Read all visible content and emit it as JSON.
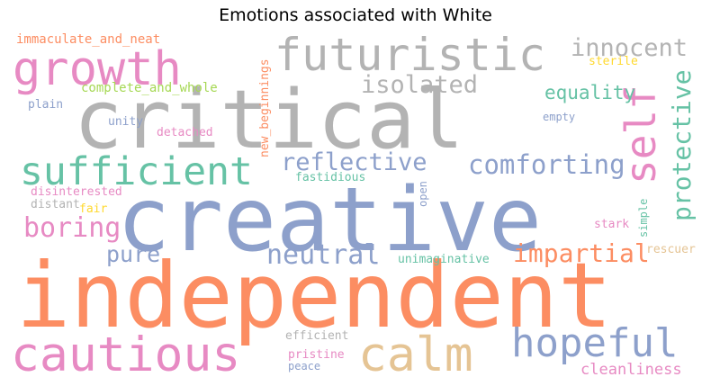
{
  "chart_data": {
    "type": "wordcloud",
    "title": "Emotions associated with White",
    "words": [
      {
        "text": "independent",
        "weight": 100,
        "color": "#fc8d62"
      },
      {
        "text": "creative",
        "weight": 80,
        "color": "#8da0cb"
      },
      {
        "text": "critical",
        "weight": 73,
        "color": "#b3b3b3"
      },
      {
        "text": "growth",
        "weight": 43,
        "color": "#e78ac3"
      },
      {
        "text": "futuristic",
        "weight": 41,
        "color": "#b3b3b3"
      },
      {
        "text": "cautious",
        "weight": 43,
        "color": "#e78ac3"
      },
      {
        "text": "calm",
        "weight": 43,
        "color": "#e5c494"
      },
      {
        "text": "self",
        "weight": 37,
        "color": "#e78ac3"
      },
      {
        "text": "sufficient",
        "weight": 35,
        "color": "#66c2a5"
      },
      {
        "text": "hopeful",
        "weight": 36,
        "color": "#8da0cb"
      },
      {
        "text": "comforting",
        "weight": 24,
        "color": "#8da0cb"
      },
      {
        "text": "protective",
        "weight": 24,
        "color": "#66c2a5"
      },
      {
        "text": "innocent",
        "weight": 22,
        "color": "#b3b3b3"
      },
      {
        "text": "reflective",
        "weight": 22,
        "color": "#8da0cb"
      },
      {
        "text": "isolated",
        "weight": 22,
        "color": "#b3b3b3"
      },
      {
        "text": "boring",
        "weight": 25,
        "color": "#e78ac3"
      },
      {
        "text": "neutral",
        "weight": 25,
        "color": "#8da0cb"
      },
      {
        "text": "impartial",
        "weight": 23,
        "color": "#fc8d62"
      },
      {
        "text": "pure",
        "weight": 21,
        "color": "#8da0cb"
      },
      {
        "text": "equality",
        "weight": 18,
        "color": "#66c2a5"
      },
      {
        "text": "cleanliness",
        "weight": 15,
        "color": "#e78ac3"
      },
      {
        "text": "immaculate_and_neat",
        "weight": 12,
        "color": "#fc8d62"
      },
      {
        "text": "complete_and_whole",
        "weight": 12,
        "color": "#a6d854"
      },
      {
        "text": "new_beginnings",
        "weight": 11,
        "color": "#fc8d62"
      },
      {
        "text": "sterile",
        "weight": 11,
        "color": "#ffd92f"
      },
      {
        "text": "plain",
        "weight": 11,
        "color": "#8da0cb"
      },
      {
        "text": "unity",
        "weight": 11,
        "color": "#8da0cb"
      },
      {
        "text": "detached",
        "weight": 11,
        "color": "#e78ac3"
      },
      {
        "text": "empty",
        "weight": 10,
        "color": "#8da0cb"
      },
      {
        "text": "fastidious",
        "weight": 11,
        "color": "#66c2a5"
      },
      {
        "text": "disinterested",
        "weight": 11,
        "color": "#e78ac3"
      },
      {
        "text": "distant",
        "weight": 11,
        "color": "#b3b3b3"
      },
      {
        "text": "fair",
        "weight": 11,
        "color": "#ffd92f"
      },
      {
        "text": "open",
        "weight": 10,
        "color": "#8da0cb"
      },
      {
        "text": "simple",
        "weight": 10,
        "color": "#66c2a5"
      },
      {
        "text": "stark",
        "weight": 11,
        "color": "#e78ac3"
      },
      {
        "text": "rescuer",
        "weight": 11,
        "color": "#e5c494"
      },
      {
        "text": "unimaginative",
        "weight": 11,
        "color": "#66c2a5"
      },
      {
        "text": "efficient",
        "weight": 11,
        "color": "#b3b3b3"
      },
      {
        "text": "pristine",
        "weight": 11,
        "color": "#e78ac3"
      },
      {
        "text": "peace",
        "weight": 10,
        "color": "#8da0cb"
      }
    ]
  }
}
